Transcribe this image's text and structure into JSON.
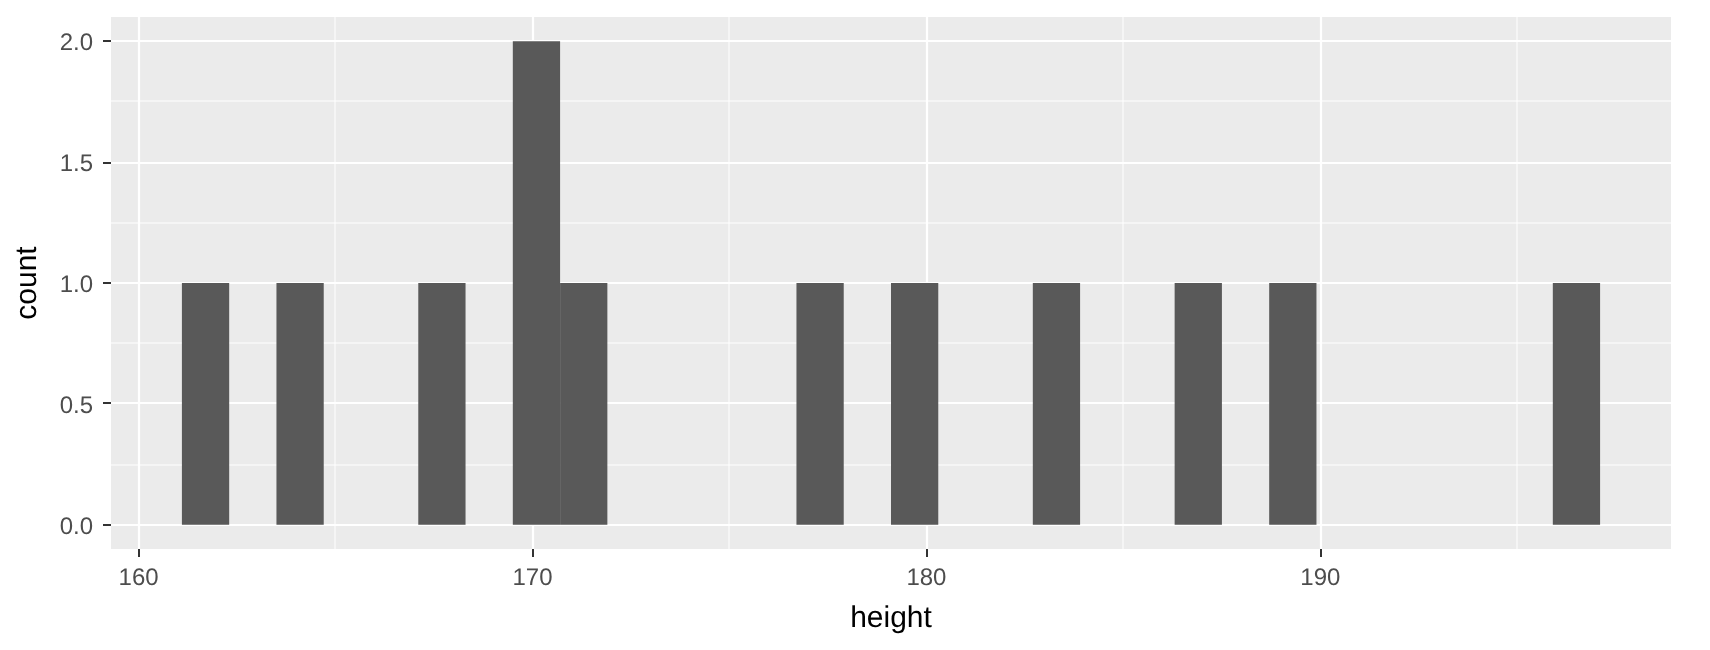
{
  "chart_data": {
    "type": "histogram",
    "xlabel": "height",
    "ylabel": "count",
    "bins": [
      161.1,
      162.3,
      163.5,
      164.7,
      165.9,
      167.1,
      168.3,
      169.5,
      170.7,
      171.9,
      173.1,
      174.3,
      175.5,
      176.7,
      177.9,
      179.1,
      180.3,
      181.5,
      182.7,
      183.9,
      185.1,
      186.3,
      187.5,
      188.7,
      189.9,
      191.1,
      192.3,
      193.5,
      194.7,
      195.9,
      197.1
    ],
    "values": [
      1,
      0,
      1,
      0,
      0,
      1,
      0,
      2,
      1,
      0,
      0,
      0,
      0,
      1,
      0,
      1,
      0,
      0,
      1,
      0,
      0,
      1,
      0,
      1,
      0,
      0,
      0,
      0,
      0,
      1
    ],
    "color": "#595959",
    "xlim": [
      159.3,
      198.9
    ],
    "ylim": [
      -0.1,
      2.1
    ],
    "xticks": [
      160,
      170,
      180,
      190
    ],
    "yticks": [
      {
        "value": 0,
        "label": "0.0"
      },
      {
        "value": 0.5,
        "label": "0.5"
      },
      {
        "value": 1,
        "label": "1.0"
      },
      {
        "value": 1.5,
        "label": "1.5"
      },
      {
        "value": 2,
        "label": "2.0"
      }
    ],
    "grid": true
  }
}
